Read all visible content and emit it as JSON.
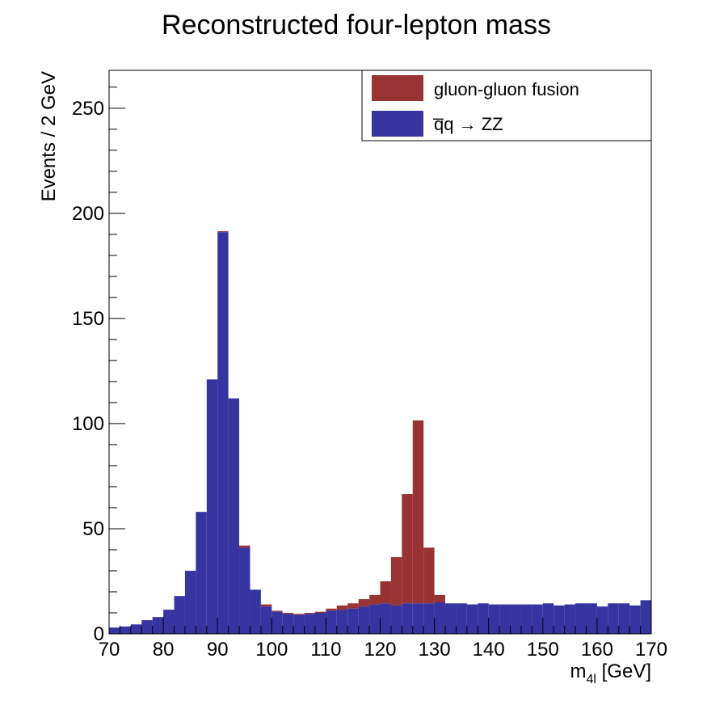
{
  "chart_data": {
    "type": "bar",
    "stacked": true,
    "title": "Reconstructed four-lepton mass",
    "xlabel_main": "m",
    "xlabel_sub": "4l",
    "xlabel_unit": " [GeV]",
    "ylabel": "Events / 2 GeV",
    "xlim": [
      70,
      170
    ],
    "ylim": [
      0,
      268
    ],
    "bin_width": 2,
    "x_ticks": [
      70,
      80,
      90,
      100,
      110,
      120,
      130,
      140,
      150,
      160,
      170
    ],
    "y_ticks": [
      0,
      50,
      100,
      150,
      200,
      250
    ],
    "legend_position": "top-right",
    "series": [
      {
        "name": "q̅q → ZZ",
        "color": "#3634a0",
        "values": [
          3,
          3.5,
          4.5,
          6.5,
          8,
          11.5,
          18,
          30,
          58,
          121,
          191,
          112,
          41,
          21,
          13,
          10.5,
          9.5,
          9,
          9.5,
          10,
          11,
          11.5,
          12,
          13,
          14,
          14.5,
          13.5,
          14.5,
          14.5,
          14.5,
          15,
          14.5,
          14.5,
          14,
          14.5,
          14,
          14,
          14,
          14,
          14,
          14.5,
          13.5,
          14,
          14.5,
          14.5,
          13,
          14.5,
          14.5,
          13.5,
          16
        ]
      },
      {
        "name": "gluon-gluon fusion",
        "color": "#993233",
        "values": [
          0,
          0,
          0,
          0,
          0,
          0,
          0,
          0,
          0,
          0,
          0.5,
          0,
          1,
          0,
          1,
          0.5,
          0.5,
          0.5,
          0.5,
          0.5,
          1,
          2,
          2.5,
          3.5,
          4.5,
          10.5,
          23,
          52,
          87,
          26.5,
          3.5,
          0,
          0,
          0,
          0,
          0,
          0,
          0,
          0,
          0,
          0,
          0,
          0,
          0,
          0,
          0,
          0,
          0,
          0,
          0
        ]
      }
    ]
  }
}
